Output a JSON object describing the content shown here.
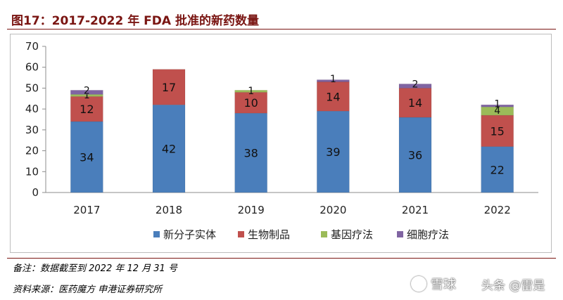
{
  "figure": {
    "title": "图17：2017-2022 年 FDA 批准的新药数量",
    "note": "备注：数据截至到 2022 年 12 月 31 号",
    "source": "资料来源：医药魔方 申港证券研究所"
  },
  "watermark": {
    "site": "雪球",
    "author": "头条 @雷是"
  },
  "colors": {
    "title": "#7a1512",
    "small_molecule": "#4a7ebb",
    "biologic": "#c0504d",
    "gene_therapy": "#9bbb59",
    "cell_therapy": "#8064a2"
  },
  "chart_data": {
    "type": "bar",
    "stacked": true,
    "title": "",
    "xlabel": "",
    "ylabel": "",
    "categories": [
      "2017",
      "2018",
      "2019",
      "2020",
      "2021",
      "2022"
    ],
    "series": [
      {
        "name": "新分子实体",
        "values": [
          34,
          42,
          38,
          39,
          36,
          22
        ]
      },
      {
        "name": "生物制品",
        "values": [
          12,
          17,
          10,
          14,
          14,
          15
        ]
      },
      {
        "name": "基因疗法",
        "values": [
          1,
          0,
          1,
          0,
          0,
          4
        ]
      },
      {
        "name": "细胞疗法",
        "values": [
          2,
          0,
          0,
          1,
          2,
          1
        ]
      }
    ],
    "ylim": [
      0,
      70
    ],
    "yticks": [
      0,
      10,
      20,
      30,
      40,
      50,
      60,
      70
    ],
    "grid": false,
    "legend_position": "bottom"
  }
}
